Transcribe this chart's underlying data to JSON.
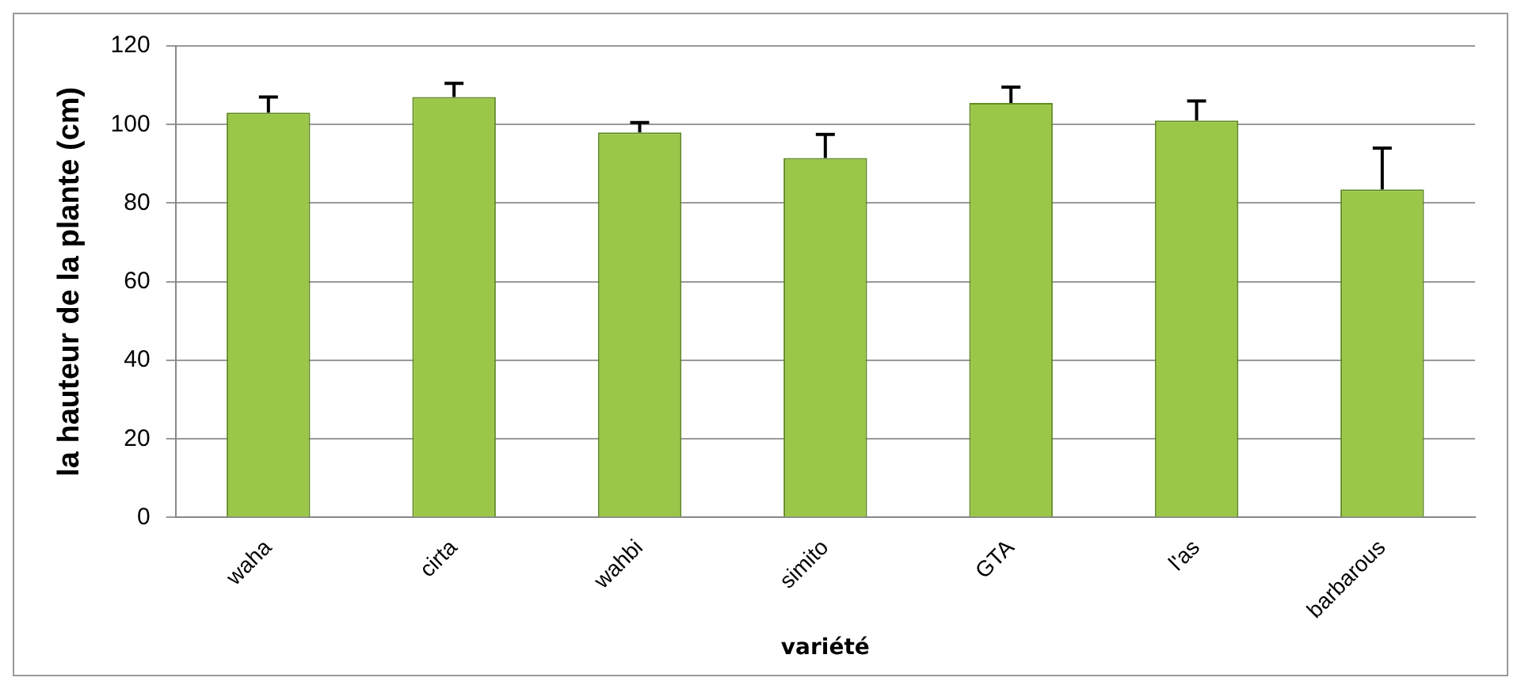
{
  "chart_data": {
    "type": "bar",
    "xlabel": "variété",
    "ylabel": "la hauteur de la plante (cm)",
    "categories": [
      "waha",
      "cirta",
      "wahbi",
      "simito",
      "GTA",
      "l'as",
      "barbarous"
    ],
    "values": [
      103,
      107,
      98,
      91.5,
      105.5,
      101,
      83.5
    ],
    "errors": [
      [
        103,
        107
      ],
      [
        107,
        110.5
      ],
      [
        98,
        100.5
      ],
      [
        91.5,
        97.5
      ],
      [
        105.5,
        109.5
      ],
      [
        101,
        106
      ],
      [
        83.5,
        94
      ]
    ],
    "color": "#9bc748",
    "ylim": [
      0,
      120
    ],
    "yticks": [
      0,
      20,
      40,
      60,
      80,
      100,
      120
    ],
    "grid": "y",
    "legend": false
  }
}
